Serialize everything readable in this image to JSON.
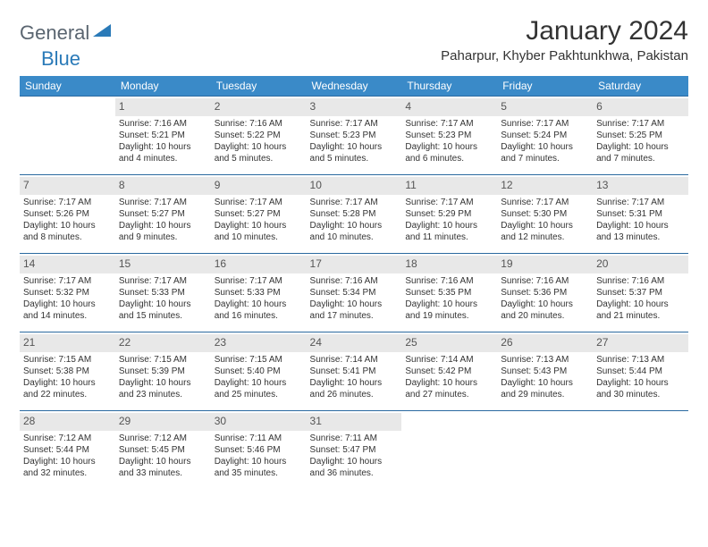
{
  "brand": {
    "part1": "General",
    "part2": "Blue"
  },
  "title": "January 2024",
  "location": "Paharpur, Khyber Pakhtunkhwa, Pakistan",
  "colors": {
    "header_bg": "#3a8ac8",
    "header_text": "#ffffff",
    "border": "#2a6aa0",
    "daynum_bg": "#e8e8e8",
    "text": "#333333",
    "brand_gray": "#5a6570",
    "brand_blue": "#2a7ab8"
  },
  "weekdays": [
    "Sunday",
    "Monday",
    "Tuesday",
    "Wednesday",
    "Thursday",
    "Friday",
    "Saturday"
  ],
  "weeks": [
    [
      null,
      {
        "n": "1",
        "sr": "7:16 AM",
        "ss": "5:21 PM",
        "dl": "10 hours and 4 minutes."
      },
      {
        "n": "2",
        "sr": "7:16 AM",
        "ss": "5:22 PM",
        "dl": "10 hours and 5 minutes."
      },
      {
        "n": "3",
        "sr": "7:17 AM",
        "ss": "5:23 PM",
        "dl": "10 hours and 5 minutes."
      },
      {
        "n": "4",
        "sr": "7:17 AM",
        "ss": "5:23 PM",
        "dl": "10 hours and 6 minutes."
      },
      {
        "n": "5",
        "sr": "7:17 AM",
        "ss": "5:24 PM",
        "dl": "10 hours and 7 minutes."
      },
      {
        "n": "6",
        "sr": "7:17 AM",
        "ss": "5:25 PM",
        "dl": "10 hours and 7 minutes."
      }
    ],
    [
      {
        "n": "7",
        "sr": "7:17 AM",
        "ss": "5:26 PM",
        "dl": "10 hours and 8 minutes."
      },
      {
        "n": "8",
        "sr": "7:17 AM",
        "ss": "5:27 PM",
        "dl": "10 hours and 9 minutes."
      },
      {
        "n": "9",
        "sr": "7:17 AM",
        "ss": "5:27 PM",
        "dl": "10 hours and 10 minutes."
      },
      {
        "n": "10",
        "sr": "7:17 AM",
        "ss": "5:28 PM",
        "dl": "10 hours and 10 minutes."
      },
      {
        "n": "11",
        "sr": "7:17 AM",
        "ss": "5:29 PM",
        "dl": "10 hours and 11 minutes."
      },
      {
        "n": "12",
        "sr": "7:17 AM",
        "ss": "5:30 PM",
        "dl": "10 hours and 12 minutes."
      },
      {
        "n": "13",
        "sr": "7:17 AM",
        "ss": "5:31 PM",
        "dl": "10 hours and 13 minutes."
      }
    ],
    [
      {
        "n": "14",
        "sr": "7:17 AM",
        "ss": "5:32 PM",
        "dl": "10 hours and 14 minutes."
      },
      {
        "n": "15",
        "sr": "7:17 AM",
        "ss": "5:33 PM",
        "dl": "10 hours and 15 minutes."
      },
      {
        "n": "16",
        "sr": "7:17 AM",
        "ss": "5:33 PM",
        "dl": "10 hours and 16 minutes."
      },
      {
        "n": "17",
        "sr": "7:16 AM",
        "ss": "5:34 PM",
        "dl": "10 hours and 17 minutes."
      },
      {
        "n": "18",
        "sr": "7:16 AM",
        "ss": "5:35 PM",
        "dl": "10 hours and 19 minutes."
      },
      {
        "n": "19",
        "sr": "7:16 AM",
        "ss": "5:36 PM",
        "dl": "10 hours and 20 minutes."
      },
      {
        "n": "20",
        "sr": "7:16 AM",
        "ss": "5:37 PM",
        "dl": "10 hours and 21 minutes."
      }
    ],
    [
      {
        "n": "21",
        "sr": "7:15 AM",
        "ss": "5:38 PM",
        "dl": "10 hours and 22 minutes."
      },
      {
        "n": "22",
        "sr": "7:15 AM",
        "ss": "5:39 PM",
        "dl": "10 hours and 23 minutes."
      },
      {
        "n": "23",
        "sr": "7:15 AM",
        "ss": "5:40 PM",
        "dl": "10 hours and 25 minutes."
      },
      {
        "n": "24",
        "sr": "7:14 AM",
        "ss": "5:41 PM",
        "dl": "10 hours and 26 minutes."
      },
      {
        "n": "25",
        "sr": "7:14 AM",
        "ss": "5:42 PM",
        "dl": "10 hours and 27 minutes."
      },
      {
        "n": "26",
        "sr": "7:13 AM",
        "ss": "5:43 PM",
        "dl": "10 hours and 29 minutes."
      },
      {
        "n": "27",
        "sr": "7:13 AM",
        "ss": "5:44 PM",
        "dl": "10 hours and 30 minutes."
      }
    ],
    [
      {
        "n": "28",
        "sr": "7:12 AM",
        "ss": "5:44 PM",
        "dl": "10 hours and 32 minutes."
      },
      {
        "n": "29",
        "sr": "7:12 AM",
        "ss": "5:45 PM",
        "dl": "10 hours and 33 minutes."
      },
      {
        "n": "30",
        "sr": "7:11 AM",
        "ss": "5:46 PM",
        "dl": "10 hours and 35 minutes."
      },
      {
        "n": "31",
        "sr": "7:11 AM",
        "ss": "5:47 PM",
        "dl": "10 hours and 36 minutes."
      },
      null,
      null,
      null
    ]
  ],
  "labels": {
    "sunrise": "Sunrise:",
    "sunset": "Sunset:",
    "daylight": "Daylight:"
  }
}
